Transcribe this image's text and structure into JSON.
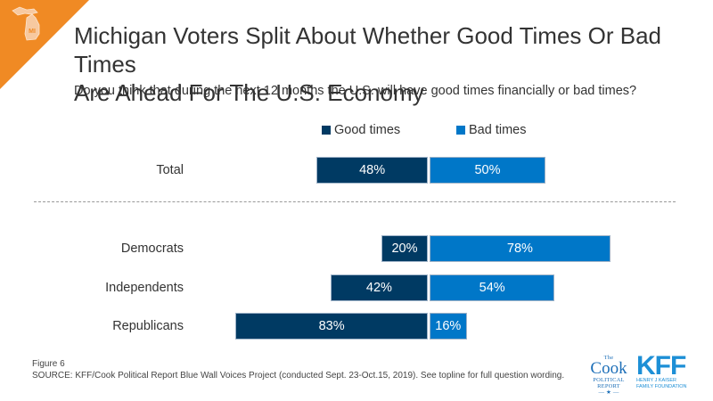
{
  "header": {
    "title_line1": "Michigan Voters Split About Whether Good Times Or Bad Times",
    "title_line2": "Are Ahead For The U.S. Economy",
    "subtitle": "Do you think that during the next 12 months the U.S. will have good times financially or bad times?",
    "state_badge": "MI",
    "accent_color": "#f08a24"
  },
  "chart_data": {
    "type": "bar",
    "orientation": "horizontal-diverging",
    "title": "Michigan Voters Split About Whether Good Times Or Bad Times Are Ahead For The U.S. Economy",
    "categories": [
      "Total",
      "Democrats",
      "Independents",
      "Republicans"
    ],
    "series": [
      {
        "name": "Good times",
        "color": "#003a63",
        "values": [
          48,
          20,
          42,
          83
        ]
      },
      {
        "name": "Bad times",
        "color": "#0077c8",
        "values": [
          50,
          78,
          54,
          16
        ]
      }
    ],
    "value_suffix": "%",
    "xlabel": "",
    "ylabel": "",
    "legend": "top-center",
    "grid": false
  },
  "footer": {
    "figure_label": "Figure 6",
    "source": "SOURCE: KFF/Cook Political Report Blue Wall Voices Project (conducted  Sept. 23-Oct.15, 2019). See topline for full question wording."
  },
  "logos": {
    "cook_top": "The",
    "cook_name": "Cook",
    "cook_line2": "POLITICAL",
    "cook_line3": "REPORT",
    "kff_name": "KFF",
    "kff_line1": "HENRY J KAISER",
    "kff_line2": "FAMILY FOUNDATION"
  }
}
